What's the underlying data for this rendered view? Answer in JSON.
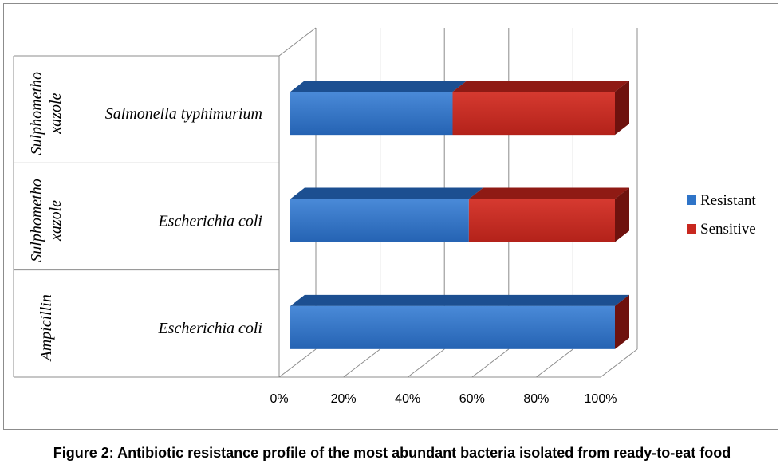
{
  "caption": "Figure 2: Antibiotic resistance profile of the most abundant bacteria isolated from ready-to-eat food",
  "chart_data": {
    "type": "bar",
    "orientation": "horizontal",
    "stacked": "percent",
    "categories": [
      {
        "group": "Sulphomethoxazole",
        "group_label_lines": [
          "Sulphometho",
          "xazole"
        ],
        "label": "Salmonella typhimurium"
      },
      {
        "group": "Sulphomethoxazole",
        "group_label_lines": [
          "Sulphometho",
          "xazole"
        ],
        "label": "Escherichia coli"
      },
      {
        "group": "Ampicillin",
        "group_label_lines": [
          "Ampicillin"
        ],
        "label": "Escherichia coli"
      }
    ],
    "series": [
      {
        "name": "Resistant",
        "values": [
          50,
          55,
          100
        ]
      },
      {
        "name": "Sensitive",
        "values": [
          50,
          45,
          0
        ]
      }
    ],
    "xlim": [
      0,
      100
    ],
    "xticks": [
      "0%",
      "20%",
      "40%",
      "60%",
      "80%",
      "100%"
    ],
    "grid": true,
    "legend_position": "right",
    "colors": {
      "Resistant": {
        "front": "#2f74c8",
        "light": "#4a8ad8",
        "top": "#1c4f91",
        "side": "#173f75"
      },
      "Sensitive": {
        "front": "#c8281f",
        "light": "#d63a30",
        "top": "#8f1a14",
        "side": "#6e120e"
      },
      "grid": "#8c8c8c"
    }
  }
}
